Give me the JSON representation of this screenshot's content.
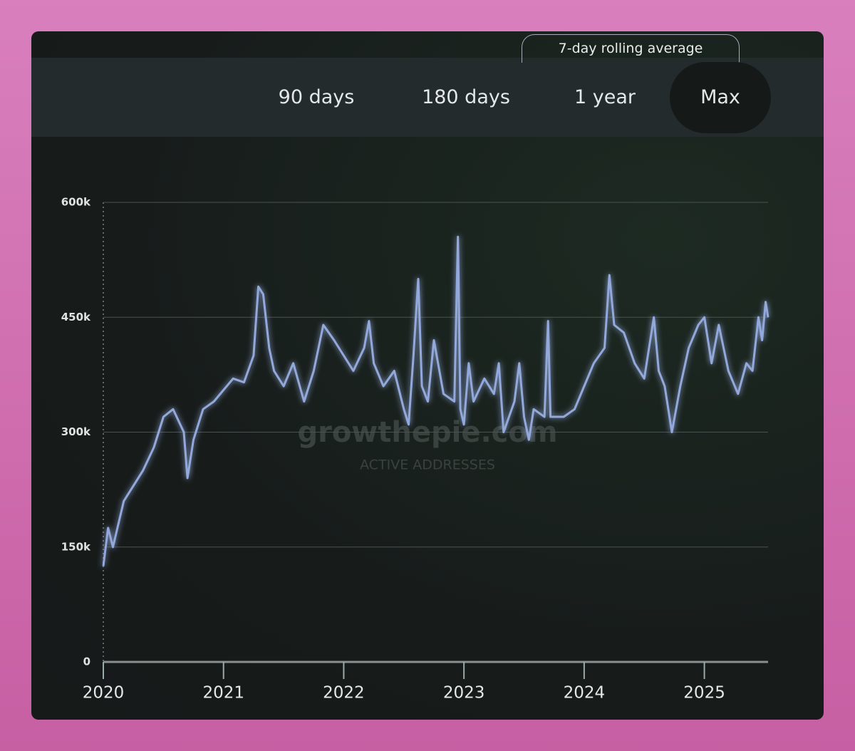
{
  "toggle": "7-day rolling average",
  "ranges": [
    "90 days",
    "180 days",
    "1 year",
    "Max"
  ],
  "selected_range": 3,
  "watermark": {
    "brand": "growthepie.com",
    "metric": "ACTIVE ADDRESSES"
  },
  "chart_data": {
    "type": "line",
    "x": [
      2020.0,
      2020.04,
      2020.08,
      2020.17,
      2020.25,
      2020.33,
      2020.42,
      2020.5,
      2020.58,
      2020.67,
      2020.7,
      2020.75,
      2020.83,
      2020.92,
      2021.0,
      2021.08,
      2021.17,
      2021.25,
      2021.29,
      2021.33,
      2021.38,
      2021.42,
      2021.5,
      2021.58,
      2021.67,
      2021.75,
      2021.83,
      2021.92,
      2022.0,
      2022.08,
      2022.17,
      2022.21,
      2022.25,
      2022.33,
      2022.42,
      2022.5,
      2022.54,
      2022.58,
      2022.62,
      2022.65,
      2022.7,
      2022.75,
      2022.83,
      2022.92,
      2022.95,
      2022.97,
      2023.0,
      2023.04,
      2023.08,
      2023.17,
      2023.25,
      2023.29,
      2023.33,
      2023.42,
      2023.46,
      2023.5,
      2023.54,
      2023.58,
      2023.67,
      2023.7,
      2023.72,
      2023.83,
      2023.92,
      2024.0,
      2024.08,
      2024.17,
      2024.21,
      2024.25,
      2024.33,
      2024.42,
      2024.5,
      2024.58,
      2024.62,
      2024.67,
      2024.73,
      2024.8,
      2024.87,
      2024.95,
      2025.0,
      2025.06,
      2025.12,
      2025.2,
      2025.28,
      2025.35,
      2025.4,
      2025.45,
      2025.48,
      2025.51,
      2025.53
    ],
    "series": [
      {
        "name": "Active addresses",
        "color": "#93a8db",
        "values": [
          125000,
          175000,
          150000,
          210000,
          230000,
          250000,
          280000,
          320000,
          330000,
          300000,
          240000,
          290000,
          330000,
          340000,
          355000,
          370000,
          365000,
          400000,
          490000,
          480000,
          410000,
          380000,
          360000,
          390000,
          340000,
          380000,
          440000,
          420000,
          400000,
          380000,
          410000,
          445000,
          390000,
          360000,
          380000,
          330000,
          310000,
          400000,
          500000,
          360000,
          340000,
          420000,
          350000,
          340000,
          555000,
          330000,
          310000,
          390000,
          340000,
          370000,
          350000,
          390000,
          300000,
          340000,
          390000,
          320000,
          290000,
          330000,
          320000,
          445000,
          320000,
          320000,
          330000,
          360000,
          390000,
          410000,
          505000,
          440000,
          430000,
          390000,
          370000,
          450000,
          380000,
          360000,
          300000,
          360000,
          410000,
          440000,
          450000,
          390000,
          440000,
          380000,
          350000,
          390000,
          380000,
          450000,
          420000,
          470000,
          450000
        ]
      }
    ],
    "xlim": [
      2020,
      2025.53
    ],
    "xticks": [
      2020,
      2021,
      2022,
      2023,
      2024,
      2025
    ],
    "ylim": [
      0,
      600000
    ],
    "yticks": [
      0,
      {
        "value": 150000,
        "label": "150k"
      },
      {
        "value": 300000,
        "label": "300k"
      },
      {
        "value": 450000,
        "label": "450k"
      },
      {
        "value": 600000,
        "label": "600k"
      }
    ],
    "grid": true
  }
}
